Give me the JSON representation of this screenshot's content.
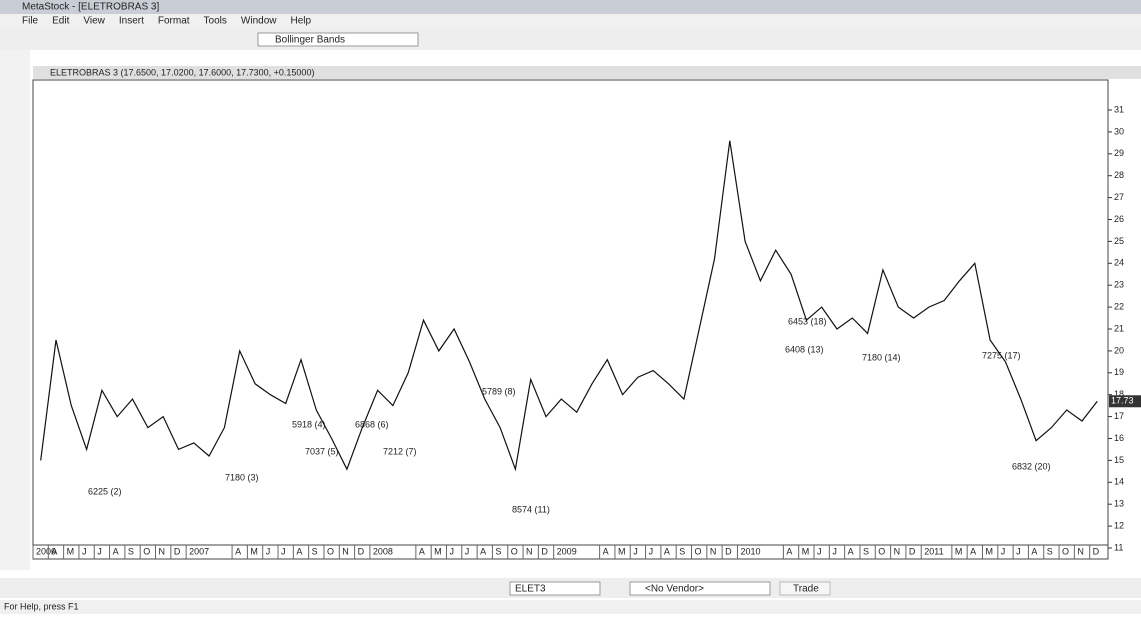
{
  "window": {
    "title": "MetaStock - [ELETROBRAS 3]",
    "menu": [
      "File",
      "Edit",
      "View",
      "Insert",
      "Format",
      "Tools",
      "Window",
      "Help"
    ],
    "indicator_box": "Bollinger Bands",
    "symbol_box": "ELET3",
    "vendor_box": "<No Vendor>",
    "trade_button": "Trade",
    "status": "For Help, press F1"
  },
  "chart_data": {
    "type": "line",
    "title": "ELETROBRAS 3 (17.6500, 17.0200, 17.6000, 17.7300, +0.15000)",
    "categories": [
      "2006",
      "A",
      "M",
      "J",
      "J",
      "A",
      "S",
      "O",
      "N",
      "D",
      "2007",
      null,
      null,
      "A",
      "M",
      "J",
      "J",
      "A",
      "S",
      "O",
      "N",
      "D",
      "2008",
      null,
      null,
      "A",
      "M",
      "J",
      "J",
      "A",
      "S",
      "O",
      "N",
      "D",
      "2009",
      null,
      null,
      "A",
      "M",
      "J",
      "J",
      "A",
      "S",
      "O",
      "N",
      "D",
      "2010",
      null,
      null,
      "A",
      "M",
      "J",
      "J",
      "A",
      "S",
      "O",
      "N",
      "D",
      "2011",
      null,
      "M",
      "A",
      "M",
      "J",
      "J",
      "A",
      "S",
      "O",
      "N",
      "D"
    ],
    "series": [
      {
        "name": "ELETROBRAS 3",
        "color": "#111111",
        "values": [
          15.0,
          20.5,
          17.5,
          15.5,
          18.2,
          17.0,
          17.8,
          16.5,
          17.0,
          15.5,
          15.8,
          15.2,
          16.5,
          20.0,
          18.5,
          18.0,
          17.6,
          19.6,
          17.3,
          16.0,
          14.6,
          16.5,
          18.2,
          17.5,
          19.0,
          21.4,
          20.0,
          21.0,
          19.5,
          17.8,
          16.5,
          14.6,
          18.7,
          17.0,
          17.8,
          17.2,
          18.5,
          19.6,
          18.0,
          18.8,
          19.1,
          18.5,
          17.8,
          21.0,
          24.2,
          29.6,
          25.0,
          23.2,
          24.6,
          23.5,
          21.4,
          22.0,
          21.0,
          21.5,
          20.8,
          23.7,
          22.0,
          21.5,
          22.0,
          22.3,
          23.2,
          24.0,
          20.5,
          19.5,
          17.8,
          15.9,
          16.5,
          17.3,
          16.8,
          17.7
        ]
      }
    ],
    "last_label": "17.73",
    "annotations": [
      "6225 (2)",
      "7180 (3)",
      "5918 (4)",
      "7037 (5)",
      "6868 (6)",
      "7212 (7)",
      "5789 (8)",
      "8574 (11)",
      "6453 (18)",
      "6408 (13)",
      "7180 (14)",
      "7275 (17)",
      "6832 (20)"
    ],
    "ylim": [
      11,
      31
    ],
    "yticks": [
      11,
      12,
      13,
      14,
      15,
      16,
      17,
      18,
      19,
      20,
      21,
      22,
      23,
      24,
      25,
      26,
      27,
      28,
      29,
      30,
      31
    ],
    "grid": false
  }
}
